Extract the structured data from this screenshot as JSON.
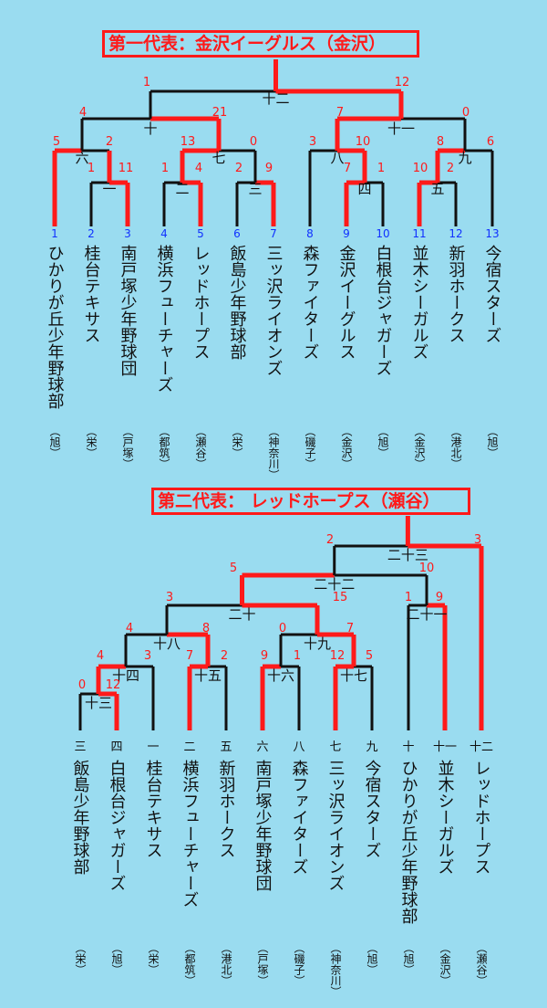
{
  "bracket1": {
    "title": "第一代表：金沢イーグルス（金沢）",
    "team_numbers": [
      "1",
      "2",
      "3",
      "4",
      "5",
      "6",
      "7",
      "8",
      "9",
      "10",
      "11",
      "12",
      "13"
    ],
    "teams": [
      "ひかりが丘少年野球部",
      "桂台テキサス",
      "南戸塚少年野球団",
      "横浜フューチャーズ",
      "レッドホープス",
      "飯島少年野球部",
      "三ッ沢ライオンズ",
      "森ファイターズ",
      "金沢イーグルス",
      "白根台ジャガーズ",
      "並木シーガルズ",
      "新羽ホークス",
      "今宿スターズ"
    ],
    "areas": [
      "（旭）",
      "（栄）",
      "（戸塚）",
      "（都筑）",
      "（瀬谷）",
      "（栄）",
      "（神奈川）",
      "（磯子）",
      "（金沢）",
      "（旭）",
      "（金沢）",
      "（港北）",
      "（旭）"
    ],
    "game_labels": [
      "一",
      "二",
      "三",
      "四",
      "五",
      "六",
      "七",
      "八",
      "九",
      "十",
      "十一",
      "十二"
    ],
    "scores": [
      "1",
      "12",
      "4",
      "21",
      "7",
      "0",
      "5",
      "2",
      "13",
      "0",
      "3",
      "10",
      "8",
      "6",
      "1",
      "11",
      "1",
      "4",
      "2",
      "9",
      "7",
      "1",
      "10",
      "2"
    ]
  },
  "bracket2": {
    "title": "第二代表： レッドホープス（瀬谷）",
    "seed_labels": [
      "三",
      "四",
      "一",
      "二",
      "五",
      "六",
      "八",
      "七",
      "九",
      "十",
      "十一",
      "十二"
    ],
    "teams": [
      "飯島少年野球部",
      "白根台ジャガーズ",
      "桂台テキサス",
      "横浜フューチャーズ",
      "新羽ホークス",
      "南戸塚少年野球団",
      "森ファイターズ",
      "三ッ沢ライオンズ",
      "今宿スターズ",
      "ひかりが丘少年野球部",
      "並木シーガルズ",
      "レッドホープス"
    ],
    "areas": [
      "（栄）",
      "（旭）",
      "（栄）",
      "（都筑）",
      "（港北）",
      "（戸塚）",
      "（磯子）",
      "（神奈川）",
      "（旭）",
      "（旭）",
      "（金沢）",
      "（瀬谷）"
    ],
    "game_labels": [
      "十三",
      "十四",
      "十五",
      "十六",
      "十七",
      "十八",
      "十九",
      "二十",
      "二十一",
      "二十二",
      "二十三"
    ],
    "scores": [
      "2",
      "3",
      "5",
      "10",
      "3",
      "15",
      "1",
      "9",
      "4",
      "8",
      "0",
      "7",
      "4",
      "3",
      "7",
      "2",
      "9",
      "1",
      "12",
      "5",
      "0",
      "12"
    ]
  }
}
